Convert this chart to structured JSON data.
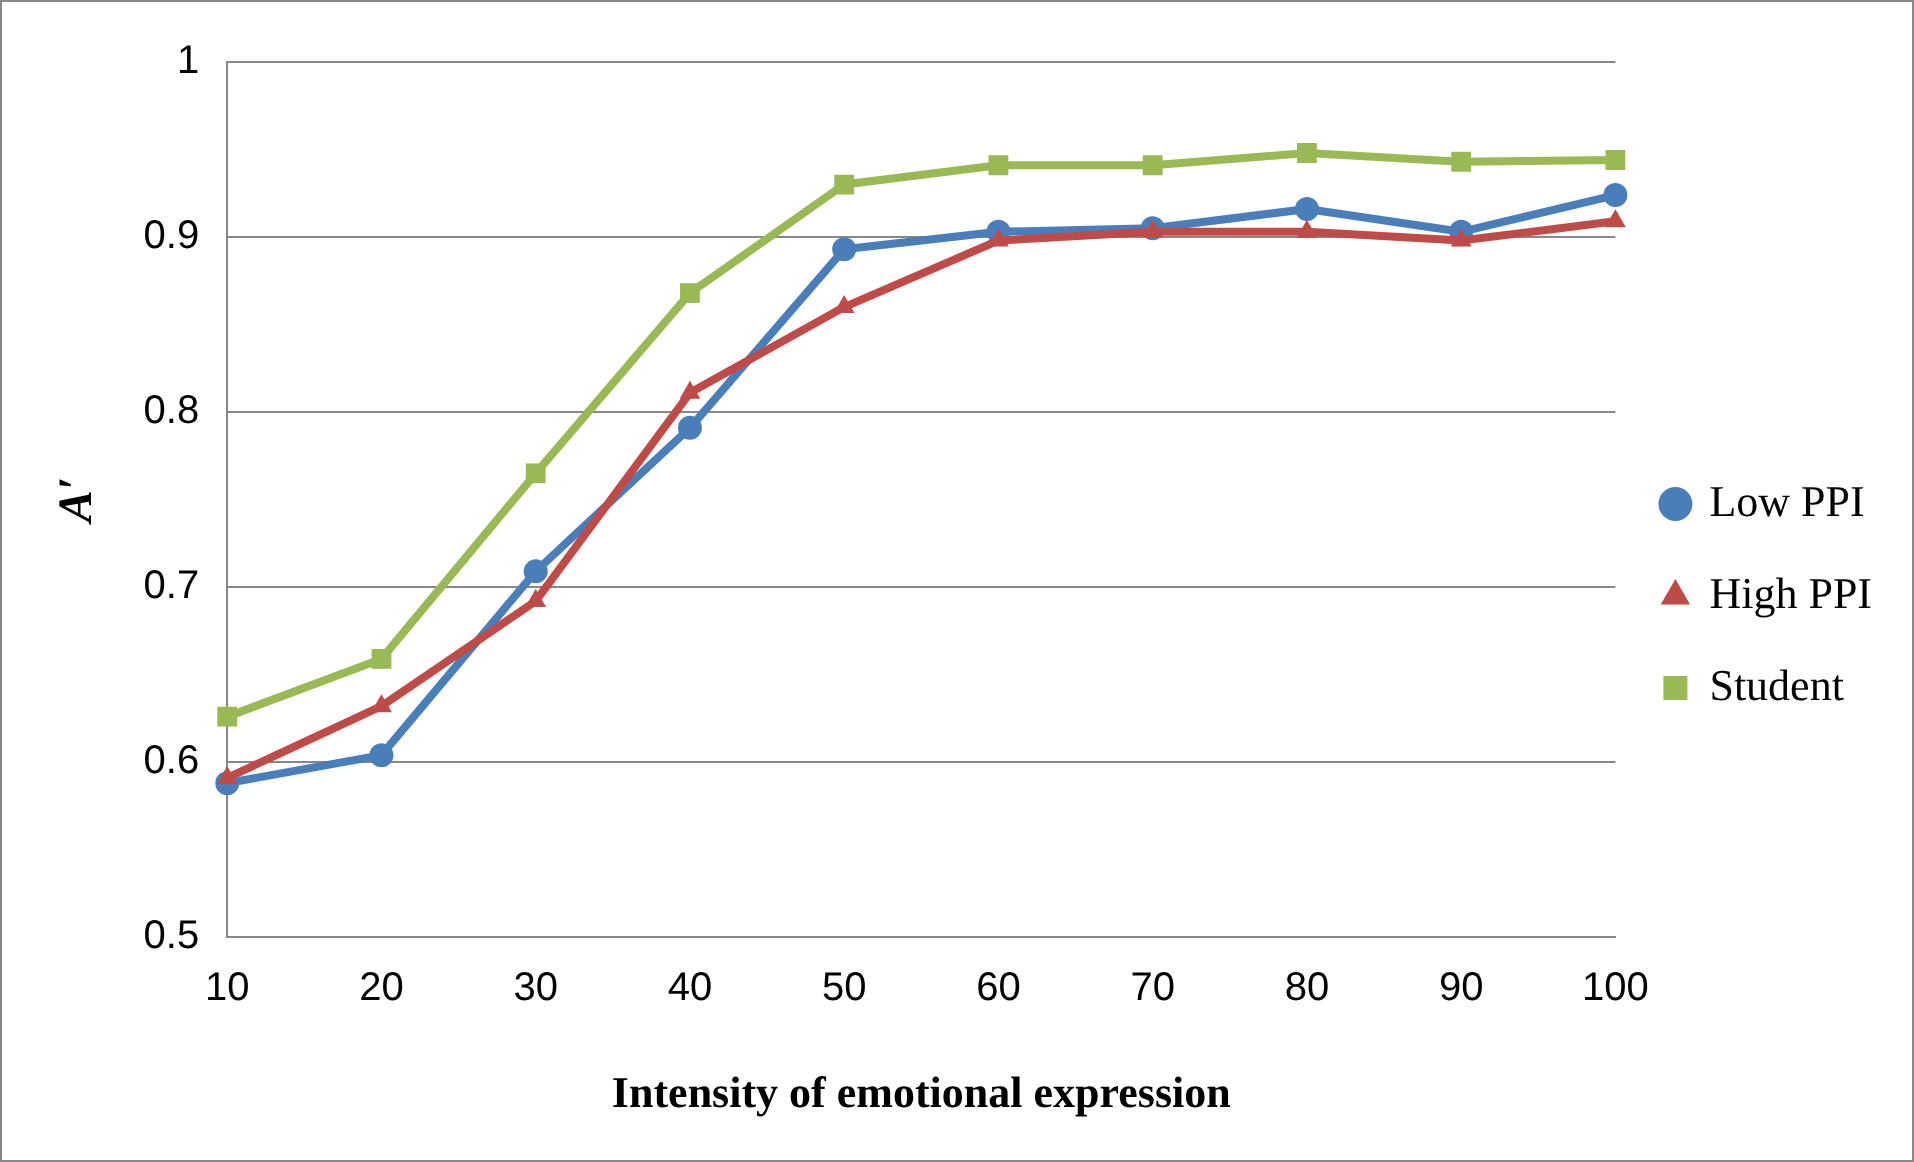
{
  "chart_data": {
    "type": "line",
    "xlabel": "Intensity of emotional expression",
    "ylabel": "A′",
    "categories": [
      "10",
      "20",
      "30",
      "40",
      "50",
      "60",
      "70",
      "80",
      "90",
      "100"
    ],
    "ylim": [
      0.5,
      1
    ],
    "yticks": [
      0.5,
      0.6,
      0.7,
      0.8,
      0.9,
      1
    ],
    "grid": "y",
    "legend": "right",
    "line_style": "solid",
    "series": [
      {
        "name": "Low PPI",
        "color": "#4a7ebb",
        "marker": "circle",
        "values": [
          0.588,
          0.604,
          0.709,
          0.791,
          0.893,
          0.903,
          0.905,
          0.916,
          0.903,
          0.924
        ]
      },
      {
        "name": "High PPI",
        "color": "#be4b48",
        "marker": "triangle",
        "values": [
          0.591,
          0.632,
          0.692,
          0.811,
          0.86,
          0.898,
          0.903,
          0.903,
          0.898,
          0.909
        ]
      },
      {
        "name": "Student",
        "color": "#98b954",
        "marker": "square",
        "values": [
          0.626,
          0.659,
          0.765,
          0.868,
          0.93,
          0.941,
          0.941,
          0.948,
          0.943,
          0.944
        ]
      }
    ]
  }
}
